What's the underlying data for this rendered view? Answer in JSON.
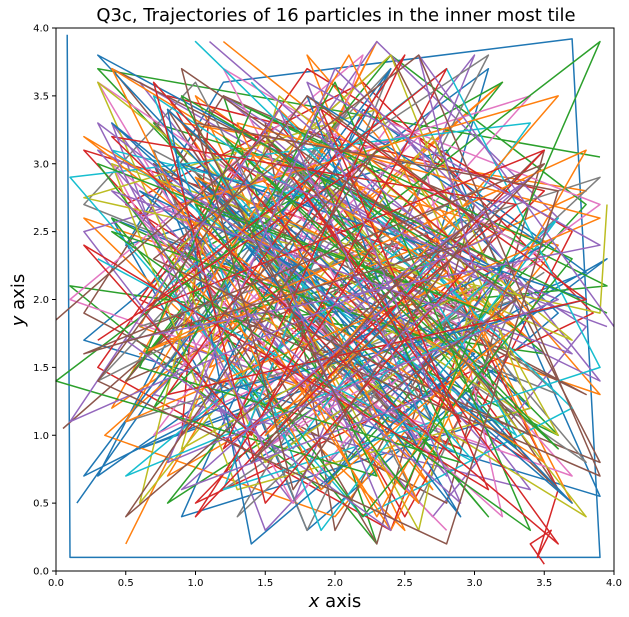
{
  "chart_data": {
    "type": "line",
    "title": "Q3c, Trajectories of 16 particles in the inner most tile",
    "xlabel_var": "x",
    "xlabel_rest": " axis",
    "ylabel_var": "y",
    "ylabel_rest": " axis",
    "xlim": [
      0.0,
      4.0
    ],
    "ylim": [
      0.0,
      4.0
    ],
    "xticks": [
      "0.0",
      "0.5",
      "1.0",
      "1.5",
      "2.0",
      "2.5",
      "3.0",
      "3.5",
      "4.0"
    ],
    "yticks": [
      "0.0",
      "0.5",
      "1.0",
      "1.5",
      "2.0",
      "2.5",
      "3.0",
      "3.5",
      "4.0"
    ],
    "grid": false,
    "legend": "none",
    "series_colors": [
      "#1f77b4",
      "#ff7f0e",
      "#2ca02c",
      "#d62728",
      "#9467bd",
      "#8c564b",
      "#e377c2",
      "#7f7f7f",
      "#bcbd22",
      "#17becf",
      "#1f77b4",
      "#ff7f0e",
      "#2ca02c",
      "#d62728",
      "#9467bd",
      "#8c564b"
    ],
    "series": [
      {
        "x": [
          0.08,
          0.1,
          3.9,
          3.7,
          1.2,
          0.5,
          2.8,
          3.9,
          0.2,
          1.6,
          3.4,
          0.9,
          2.2,
          3.8,
          0.6,
          2.5,
          3.1,
          1.0,
          0.3,
          2.9,
          3.6,
          1.8,
          0.7,
          2.4,
          3.95,
          1.4,
          0.4,
          3.3,
          2.0,
          0.15
        ],
        "y": [
          3.95,
          0.1,
          0.1,
          3.92,
          3.6,
          2.4,
          3.1,
          0.55,
          1.7,
          2.9,
          1.2,
          0.4,
          3.4,
          2.2,
          0.9,
          1.6,
          3.7,
          2.1,
          0.7,
          2.6,
          1.9,
          0.3,
          3.0,
          1.1,
          2.3,
          0.8,
          2.6,
          1.4,
          3.2,
          0.5
        ]
      },
      {
        "x": [
          0.5,
          2.3,
          1.1,
          3.8,
          0.9,
          2.7,
          1.5,
          3.2,
          0.35,
          2.0,
          3.6,
          1.3,
          0.6,
          2.9,
          1.8,
          3.9,
          0.2,
          2.5,
          1.0,
          3.4,
          2.1,
          0.8,
          3.0,
          1.6,
          0.4,
          2.6,
          3.7,
          1.2
        ],
        "y": [
          0.2,
          3.9,
          1.5,
          2.8,
          3.3,
          0.6,
          2.1,
          3.6,
          1.0,
          0.4,
          2.4,
          3.1,
          1.8,
          0.9,
          3.8,
          1.3,
          2.6,
          0.3,
          3.5,
          1.7,
          2.9,
          0.7,
          2.0,
          3.4,
          1.2,
          2.7,
          0.5,
          3.0
        ]
      },
      {
        "x": [
          3.9,
          0.3,
          2.6,
          1.4,
          3.1,
          0.7,
          2.0,
          3.5,
          0.1,
          1.9,
          3.8,
          2.4,
          0.5,
          1.7,
          3.3,
          2.8,
          0.9,
          3.95,
          1.2,
          2.3,
          0.4,
          3.6,
          1.5,
          2.9,
          0.8,
          3.2,
          1.1,
          2.2
        ],
        "y": [
          3.05,
          3.7,
          1.2,
          2.5,
          0.4,
          3.3,
          2.9,
          1.6,
          2.1,
          0.6,
          2.7,
          3.8,
          1.4,
          3.0,
          0.9,
          2.3,
          1.8,
          2.1,
          3.5,
          0.2,
          2.6,
          1.0,
          3.2,
          1.9,
          0.5,
          3.6,
          2.4,
          1.3
        ]
      },
      {
        "x": [
          1.6,
          3.4,
          0.5,
          2.2,
          3.85,
          1.0,
          2.7,
          0.2,
          1.9,
          3.5,
          0.8,
          2.5,
          3.2,
          1.3,
          0.6,
          2.9,
          3.7,
          1.8,
          0.3,
          2.4,
          3.1,
          1.1,
          0.9,
          2.6,
          3.6,
          3.45,
          3.55,
          3.4,
          3.5
        ],
        "y": [
          3.3,
          0.8,
          2.7,
          3.6,
          1.9,
          0.5,
          2.3,
          3.1,
          1.2,
          2.8,
          3.5,
          0.4,
          1.7,
          3.0,
          2.0,
          0.9,
          2.5,
          3.7,
          1.5,
          0.3,
          2.2,
          3.4,
          1.0,
          2.6,
          0.6,
          0.1,
          0.3,
          0.2,
          0.05
        ]
      },
      {
        "x": [
          0.9,
          3.0,
          1.7,
          0.2,
          2.5,
          3.9,
          1.1,
          2.8,
          0.6,
          3.3,
          2.0,
          0.4,
          1.5,
          3.6,
          2.3,
          0.8,
          3.1,
          1.9,
          0.3,
          2.7,
          3.8,
          1.2,
          2.1,
          0.7,
          3.4,
          1.6,
          2.9,
          3.95
        ],
        "y": [
          1.0,
          3.8,
          0.5,
          2.5,
          3.2,
          1.4,
          2.8,
          0.7,
          3.6,
          2.0,
          1.1,
          3.3,
          0.3,
          2.6,
          3.9,
          1.7,
          0.9,
          2.3,
          3.1,
          0.4,
          1.8,
          3.5,
          2.7,
          1.3,
          0.6,
          3.0,
          2.2,
          1.8
        ]
      },
      {
        "x": [
          0.05,
          2.1,
          3.6,
          0.8,
          1.9,
          3.3,
          0.4,
          2.6,
          1.4,
          3.8,
          0.7,
          2.3,
          3.0,
          1.2,
          0.2,
          2.8,
          3.5,
          1.6,
          0.9,
          2.4,
          3.9,
          1.0,
          0.5,
          3.2,
          2.0,
          1.5
        ],
        "y": [
          1.05,
          2.9,
          0.6,
          3.4,
          1.6,
          2.2,
          3.7,
          0.9,
          2.5,
          1.3,
          3.0,
          0.2,
          2.7,
          3.5,
          1.9,
          0.5,
          3.1,
          1.2,
          2.4,
          3.8,
          0.8,
          2.0,
          1.4,
          2.6,
          0.3,
          3.3
        ]
      },
      {
        "x": [
          2.8,
          0.6,
          3.4,
          1.3,
          2.2,
          0.1,
          3.7,
          1.8,
          0.9,
          2.6,
          3.2,
          1.0,
          0.3,
          2.9,
          1.5,
          3.9,
          2.4,
          0.7,
          3.0,
          1.7,
          0.4,
          2.1,
          3.5,
          1.2,
          2.7
        ],
        "y": [
          0.3,
          2.6,
          3.5,
          1.1,
          3.8,
          2.0,
          0.7,
          2.9,
          1.5,
          3.2,
          0.4,
          2.4,
          3.6,
          1.8,
          0.9,
          2.7,
          3.3,
          1.0,
          2.1,
          0.5,
          3.0,
          1.6,
          2.3,
          3.7,
          0.8
        ]
      },
      {
        "x": [
          3.5,
          1.2,
          2.4,
          0.3,
          3.0,
          1.8,
          0.7,
          2.9,
          3.8,
          1.4,
          2.1,
          0.5,
          3.3,
          2.6,
          1.0,
          0.2,
          3.6,
          1.7,
          2.8,
          0.9,
          3.1,
          2.0,
          1.3,
          3.9,
          0.6
        ],
        "y": [
          2.2,
          0.6,
          3.7,
          1.4,
          2.8,
          0.3,
          3.1,
          1.9,
          0.8,
          2.5,
          3.4,
          1.1,
          2.0,
          0.5,
          3.6,
          2.7,
          1.3,
          3.0,
          0.9,
          2.3,
          3.8,
          1.6,
          0.4,
          2.9,
          1.8
        ]
      },
      {
        "x": [
          3.95,
          3.9,
          0.2,
          2.3,
          3.6,
          1.1,
          0.6,
          2.7,
          3.2,
          1.5,
          0.3,
          2.9,
          1.9,
          3.8,
          0.8,
          2.4,
          3.4,
          1.3,
          0.4,
          2.1,
          3.7,
          1.6,
          0.9,
          3.0,
          2.6,
          1.0
        ],
        "y": [
          2.7,
          1.9,
          2.75,
          3.4,
          1.0,
          2.6,
          0.5,
          3.2,
          2.0,
          0.8,
          3.6,
          1.5,
          2.9,
          0.4,
          2.3,
          3.8,
          1.2,
          0.6,
          3.0,
          2.4,
          1.7,
          3.5,
          0.9,
          2.1,
          0.3,
          3.3
        ]
      },
      {
        "x": [
          1.4,
          3.1,
          0.5,
          2.5,
          1.0,
          3.7,
          2.2,
          0.1,
          3.4,
          1.7,
          0.8,
          2.8,
          3.9,
          1.2,
          2.0,
          0.4,
          3.3,
          2.6,
          0.7,
          1.9,
          3.6,
          2.3,
          1.1,
          3.0,
          0.3
        ],
        "y": [
          3.6,
          1.8,
          0.7,
          2.4,
          3.9,
          1.2,
          0.4,
          2.9,
          3.3,
          0.9,
          2.1,
          3.7,
          1.5,
          0.6,
          2.7,
          3.1,
          1.0,
          2.2,
          3.5,
          0.3,
          2.6,
          1.4,
          3.0,
          0.8,
          2.3
        ]
      },
      {
        "x": [
          2.0,
          0.4,
          3.3,
          1.6,
          2.9,
          0.9,
          3.8,
          1.1,
          2.4,
          0.2,
          3.5,
          1.8,
          2.7,
          0.6,
          3.0,
          1.4,
          0.8,
          2.2,
          3.7,
          1.0,
          2.5,
          0.3,
          3.2,
          1.9
        ],
        "y": [
          1.8,
          3.3,
          0.9,
          2.6,
          0.4,
          3.0,
          2.0,
          1.3,
          3.7,
          0.7,
          2.4,
          3.5,
          1.1,
          2.8,
          1.6,
          0.2,
          3.4,
          2.1,
          0.5,
          2.9,
          1.4,
          3.8,
          2.2,
          0.6
        ]
      },
      {
        "x": [
          0.7,
          2.6,
          1.3,
          3.9,
          0.5,
          2.1,
          3.5,
          1.7,
          0.2,
          3.0,
          2.4,
          0.9,
          3.6,
          1.5,
          2.8,
          0.4,
          1.9,
          3.3,
          1.0,
          2.3,
          3.8,
          0.6,
          2.9,
          1.2
        ],
        "y": [
          2.4,
          0.5,
          3.3,
          2.6,
          1.1,
          3.8,
          0.8,
          2.0,
          3.2,
          1.5,
          0.3,
          2.7,
          3.5,
          1.0,
          2.2,
          3.7,
          0.6,
          1.8,
          2.9,
          0.4,
          3.1,
          1.6,
          2.5,
          3.9
        ]
      },
      {
        "x": [
          3.2,
          0.9,
          2.3,
          0.0,
          1.8,
          3.6,
          1.2,
          2.7,
          0.4,
          3.4,
          2.0,
          0.7,
          1.5,
          3.9,
          2.5,
          1.0,
          3.1,
          0.3,
          2.2,
          3.7,
          1.4,
          0.6,
          2.9,
          1.9,
          3.95
        ],
        "y": [
          2.1,
          3.5,
          0.7,
          1.4,
          2.8,
          0.9,
          3.2,
          1.7,
          2.5,
          0.3,
          3.6,
          1.2,
          2.0,
          3.9,
          0.6,
          2.7,
          1.9,
          3.0,
          0.4,
          2.3,
          3.4,
          1.5,
          0.8,
          2.9,
          1.9
        ]
      },
      {
        "x": [
          2.4,
          1.0,
          3.5,
          0.6,
          2.8,
          1.4,
          0.2,
          3.1,
          1.9,
          3.8,
          0.8,
          2.5,
          1.2,
          3.3,
          0.4,
          2.1,
          3.6,
          1.7,
          2.9,
          0.7,
          1.5,
          3.0,
          2.2,
          0.3
        ],
        "y": [
          2.6,
          0.4,
          3.1,
          1.9,
          3.7,
          1.0,
          2.4,
          0.6,
          3.4,
          2.0,
          1.3,
          3.8,
          0.9,
          2.7,
          3.2,
          1.5,
          0.2,
          2.9,
          1.1,
          3.6,
          0.5,
          2.3,
          3.0,
          1.7
        ]
      },
      {
        "x": [
          1.1,
          3.7,
          0.4,
          2.9,
          1.6,
          0.1,
          3.2,
          2.0,
          0.8,
          3.6,
          1.3,
          2.4,
          0.5,
          3.9,
          1.8,
          2.7,
          0.9,
          3.4,
          2.1,
          0.3,
          1.5,
          3.0,
          2.6,
          4.0
        ],
        "y": [
          3.9,
          1.6,
          2.8,
          0.5,
          3.4,
          1.1,
          2.5,
          3.7,
          0.8,
          2.0,
          3.0,
          0.3,
          1.7,
          2.4,
          3.6,
          1.3,
          0.6,
          2.9,
          1.9,
          3.3,
          0.9,
          2.2,
          3.8,
          1.8
        ]
      },
      {
        "x": [
          0.0,
          1.5,
          3.4,
          0.7,
          2.6,
          3.9,
          1.2,
          2.3,
          0.5,
          3.0,
          1.8,
          0.3,
          2.8,
          3.6,
          1.0,
          2.1,
          3.3,
          0.9,
          1.7,
          2.9,
          0.2,
          3.5,
          1.4,
          2.5
        ],
        "y": [
          1.85,
          3.2,
          1.0,
          2.3,
          3.8,
          0.7,
          1.9,
          3.1,
          0.4,
          2.6,
          3.5,
          1.4,
          0.2,
          2.8,
          3.3,
          1.1,
          2.0,
          3.7,
          0.6,
          2.4,
          1.6,
          3.0,
          0.8,
          2.2
        ]
      }
    ]
  }
}
